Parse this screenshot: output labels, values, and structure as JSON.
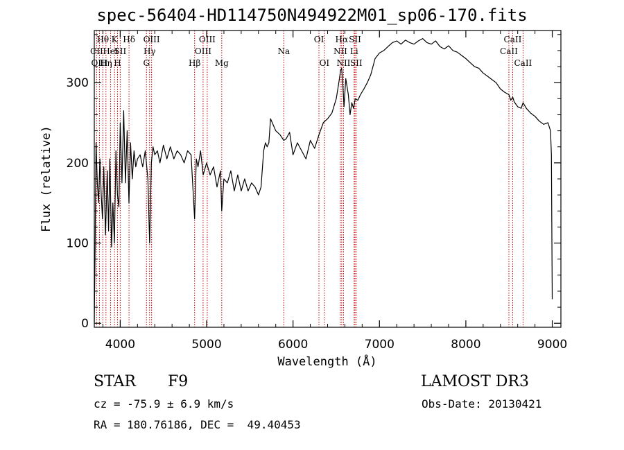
{
  "title": "spec-56404-HD114750N494922M01_sp06-170.fits",
  "info": {
    "object_class": "STAR",
    "subclass": "F9",
    "survey": "LAMOST DR3",
    "cz": "cz = -75.9 ± 6.9 km/s",
    "obs_date": "Obs-Date: 20130421",
    "coords": "RA = 180.76186, DEC =  49.40453"
  },
  "chart_data": {
    "type": "line",
    "xlabel": "Wavelength (Å)",
    "ylabel": "Flux (relative)",
    "xlim": [
      3700,
      9100
    ],
    "ylim": [
      -5,
      365
    ],
    "x_ticks": [
      4000,
      5000,
      6000,
      7000,
      8000,
      9000
    ],
    "y_ticks": [
      0,
      100,
      200,
      300
    ],
    "colors": {
      "spectrum": "#000000",
      "line_marker": "#c00000"
    },
    "spectrum": {
      "x": [
        3700,
        3710,
        3720,
        3735,
        3750,
        3765,
        3780,
        3795,
        3810,
        3830,
        3850,
        3865,
        3880,
        3900,
        3915,
        3933,
        3950,
        3968,
        3985,
        4000,
        4020,
        4040,
        4060,
        4080,
        4101,
        4120,
        4140,
        4160,
        4180,
        4200,
        4230,
        4260,
        4290,
        4320,
        4340,
        4360,
        4380,
        4400,
        4430,
        4460,
        4500,
        4540,
        4580,
        4620,
        4660,
        4700,
        4740,
        4780,
        4820,
        4861,
        4880,
        4900,
        4930,
        4960,
        5000,
        5040,
        5080,
        5120,
        5160,
        5175,
        5200,
        5240,
        5280,
        5320,
        5360,
        5400,
        5440,
        5480,
        5520,
        5560,
        5600,
        5630,
        5660,
        5680,
        5700,
        5720,
        5740,
        5760,
        5800,
        5850,
        5893,
        5920,
        5960,
        6000,
        6050,
        6100,
        6150,
        6200,
        6250,
        6300,
        6350,
        6400,
        6450,
        6500,
        6530,
        6550,
        6563,
        6575,
        6590,
        6610,
        6640,
        6660,
        6680,
        6700,
        6720,
        6750,
        6780,
        6820,
        6860,
        6900,
        6950,
        7000,
        7050,
        7100,
        7150,
        7200,
        7250,
        7300,
        7350,
        7400,
        7450,
        7500,
        7550,
        7600,
        7650,
        7700,
        7750,
        7800,
        7850,
        7900,
        7950,
        8000,
        8050,
        8100,
        8150,
        8200,
        8250,
        8300,
        8350,
        8400,
        8450,
        8498,
        8520,
        8542,
        8560,
        8600,
        8640,
        8662,
        8700,
        8750,
        8800,
        8850,
        8900,
        8950,
        8980,
        8990,
        9000
      ],
      "y": [
        2,
        95,
        225,
        175,
        150,
        205,
        160,
        130,
        195,
        110,
        190,
        115,
        205,
        95,
        150,
        100,
        215,
        160,
        145,
        250,
        175,
        265,
        175,
        240,
        150,
        225,
        180,
        215,
        195,
        205,
        210,
        195,
        215,
        180,
        100,
        200,
        220,
        210,
        215,
        200,
        222,
        205,
        220,
        205,
        215,
        210,
        200,
        215,
        210,
        130,
        205,
        195,
        215,
        185,
        200,
        185,
        195,
        170,
        190,
        140,
        180,
        175,
        190,
        165,
        185,
        165,
        180,
        165,
        175,
        170,
        160,
        170,
        215,
        225,
        220,
        225,
        255,
        250,
        240,
        235,
        228,
        230,
        238,
        210,
        225,
        215,
        205,
        228,
        218,
        235,
        250,
        255,
        262,
        280,
        300,
        315,
        318,
        300,
        270,
        305,
        285,
        260,
        275,
        268,
        280,
        278,
        285,
        292,
        300,
        310,
        330,
        337,
        340,
        345,
        350,
        352,
        348,
        353,
        350,
        348,
        352,
        355,
        350,
        348,
        352,
        345,
        342,
        346,
        340,
        338,
        334,
        330,
        325,
        320,
        318,
        312,
        308,
        304,
        300,
        292,
        288,
        285,
        278,
        282,
        276,
        270,
        268,
        275,
        268,
        262,
        258,
        252,
        248,
        250,
        240,
        210,
        30
      ]
    },
    "line_markers": [
      {
        "label": "Hθ",
        "wavelength": 3798,
        "row": 1
      },
      {
        "label": "CII",
        "wavelength": 3727,
        "row": 2
      },
      {
        "label": "OIII",
        "wavelength": 3760,
        "row": 3
      },
      {
        "label": "Hη",
        "wavelength": 3835,
        "row": 3
      },
      {
        "label": "HeI",
        "wavelength": 3889,
        "row": 2
      },
      {
        "label": "K",
        "wavelength": 3934,
        "row": 1
      },
      {
        "label": "H",
        "wavelength": 3969,
        "row": 3
      },
      {
        "label": "SII",
        "wavelength": 4000,
        "row": 2
      },
      {
        "label": "Hδ",
        "wavelength": 4102,
        "row": 1
      },
      {
        "label": "OIII",
        "wavelength": 4363,
        "row": 1
      },
      {
        "label": "Hγ",
        "wavelength": 4340,
        "row": 2
      },
      {
        "label": "G",
        "wavelength": 4304,
        "row": 3
      },
      {
        "label": "Hβ",
        "wavelength": 4861,
        "row": 3
      },
      {
        "label": "OIII",
        "wavelength": 5007,
        "row": 1
      },
      {
        "label": "OIII",
        "wavelength": 4959,
        "row": 2
      },
      {
        "label": "Mg",
        "wavelength": 5175,
        "row": 3
      },
      {
        "label": "Na",
        "wavelength": 5893,
        "row": 2
      },
      {
        "label": "OI",
        "wavelength": 6300,
        "row": 1
      },
      {
        "label": "OI",
        "wavelength": 6363,
        "row": 3
      },
      {
        "label": "Hα",
        "wavelength": 6563,
        "row": 1
      },
      {
        "label": "NII",
        "wavelength": 6548,
        "row": 2
      },
      {
        "label": "NII",
        "wavelength": 6584,
        "row": 3
      },
      {
        "label": "SII",
        "wavelength": 6717,
        "row": 1
      },
      {
        "label": "Li",
        "wavelength": 6707,
        "row": 2
      },
      {
        "label": "SII",
        "wavelength": 6731,
        "row": 3
      },
      {
        "label": "CaII",
        "wavelength": 8542,
        "row": 1
      },
      {
        "label": "CaII",
        "wavelength": 8498,
        "row": 2
      },
      {
        "label": "CaII",
        "wavelength": 8662,
        "row": 3
      }
    ]
  }
}
